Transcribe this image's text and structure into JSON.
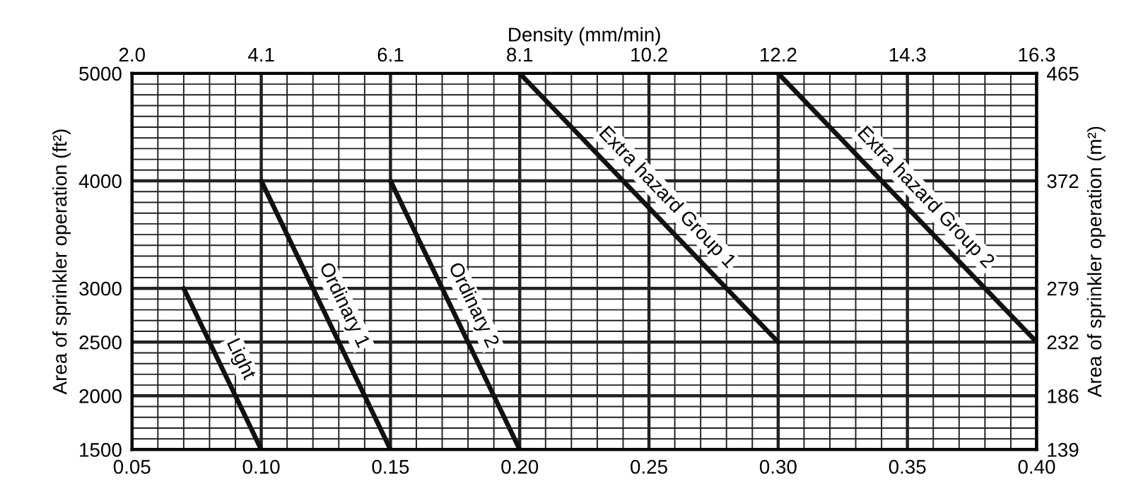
{
  "chart_data": {
    "type": "line",
    "x2label": "Density (mm/min)",
    "ylabel": "Area of sprinkler operation (ft²)",
    "y2label": "Area of sprinkler operation (m²)",
    "xlim": [
      0.05,
      0.4
    ],
    "xticks": [
      0.05,
      {
        "value": 0.06,
        "label": null
      },
      {
        "value": 0.07,
        "label": null
      },
      {
        "value": 0.08,
        "label": null
      },
      {
        "value": 0.09,
        "label": null
      },
      {
        "value": 0.1,
        "label": "0.10"
      },
      {
        "value": 0.11,
        "label": null
      },
      {
        "value": 0.12,
        "label": null
      },
      {
        "value": 0.13,
        "label": null
      },
      {
        "value": 0.14,
        "label": null
      },
      0.15,
      {
        "value": 0.16,
        "label": null
      },
      {
        "value": 0.17,
        "label": null
      },
      {
        "value": 0.18,
        "label": null
      },
      {
        "value": 0.19,
        "label": null
      },
      {
        "value": 0.2,
        "label": "0.20"
      },
      {
        "value": 0.21,
        "label": null
      },
      {
        "value": 0.22,
        "label": null
      },
      {
        "value": 0.23,
        "label": null
      },
      {
        "value": 0.24,
        "label": null
      },
      0.25,
      {
        "value": 0.26,
        "label": null
      },
      {
        "value": 0.27,
        "label": null
      },
      {
        "value": 0.28,
        "label": null
      },
      {
        "value": 0.29,
        "label": null
      },
      {
        "value": 0.3,
        "label": "0.30"
      },
      {
        "value": 0.31,
        "label": null
      },
      {
        "value": 0.32,
        "label": null
      },
      {
        "value": 0.33,
        "label": null
      },
      {
        "value": 0.34,
        "label": null
      },
      0.35,
      {
        "value": 0.36,
        "label": null
      },
      {
        "value": 0.37,
        "label": null
      },
      {
        "value": 0.38,
        "label": null
      },
      {
        "value": 0.39,
        "label": null
      },
      {
        "value": 0.4,
        "label": "0.40"
      }
    ],
    "x2lim": [
      2.037,
      16.298
    ],
    "x2ticks": [
      {
        "value": 2.037,
        "label": "2.0"
      },
      {
        "value": 4.075,
        "label": "4.1"
      },
      {
        "value": 6.112,
        "label": "6.1"
      },
      {
        "value": 8.149,
        "label": "8.1"
      },
      {
        "value": 10.187,
        "label": "10.2"
      },
      {
        "value": 12.224,
        "label": "12.2"
      },
      {
        "value": 14.261,
        "label": "14.3"
      },
      {
        "value": 16.298,
        "label": "16.3"
      }
    ],
    "ylim": [
      1500,
      5000
    ],
    "yticks": [
      1500,
      {
        "value": 1600,
        "label": null
      },
      {
        "value": 1700,
        "label": null
      },
      {
        "value": 1800,
        "label": null
      },
      {
        "value": 1900,
        "label": null
      },
      2000,
      {
        "value": 2100,
        "label": null
      },
      {
        "value": 2200,
        "label": null
      },
      {
        "value": 2300,
        "label": null
      },
      {
        "value": 2400,
        "label": null
      },
      2500,
      {
        "value": 2600,
        "label": null
      },
      {
        "value": 2700,
        "label": null
      },
      {
        "value": 2800,
        "label": null
      },
      {
        "value": 2900,
        "label": null
      },
      3000,
      {
        "value": 3100,
        "label": null
      },
      {
        "value": 3200,
        "label": null
      },
      {
        "value": 3300,
        "label": null
      },
      {
        "value": 3400,
        "label": null
      },
      {
        "value": 3500,
        "label": null
      },
      {
        "value": 3600,
        "label": null
      },
      {
        "value": 3700,
        "label": null
      },
      {
        "value": 3800,
        "label": null
      },
      {
        "value": 3900,
        "label": null
      },
      4000,
      {
        "value": 4100,
        "label": null
      },
      {
        "value": 4200,
        "label": null
      },
      {
        "value": 4300,
        "label": null
      },
      {
        "value": 4400,
        "label": null
      },
      {
        "value": 4500,
        "label": null
      },
      {
        "value": 4600,
        "label": null
      },
      {
        "value": 4700,
        "label": null
      },
      {
        "value": 4800,
        "label": null
      },
      {
        "value": 4900,
        "label": null
      },
      5000
    ],
    "y2lim": [
      139.35,
      464.52
    ],
    "y2ticks": [
      {
        "value": 139.35,
        "label": "139"
      },
      {
        "value": 185.81,
        "label": "186"
      },
      {
        "value": 232.26,
        "label": "232"
      },
      {
        "value": 278.71,
        "label": "279"
      },
      {
        "value": 371.61,
        "label": "372"
      },
      {
        "value": 464.52,
        "label": "465"
      }
    ],
    "grid": true,
    "series": [
      {
        "name": "Light",
        "color": "#111111",
        "x": [
          0.07,
          0.1
        ],
        "values": [
          3000,
          1500
        ]
      },
      {
        "name": "Ordinary 1",
        "color": "#111111",
        "x": [
          0.1,
          0.15
        ],
        "values": [
          4000,
          1500
        ]
      },
      {
        "name": "Ordinary 2",
        "color": "#111111",
        "x": [
          0.15,
          0.2
        ],
        "values": [
          4000,
          1500
        ]
      },
      {
        "name": "Extra hazard Group 1",
        "color": "#111111",
        "x": [
          0.2,
          0.3
        ],
        "values": [
          5000,
          2500
        ]
      },
      {
        "name": "Extra hazard Group 2",
        "color": "#111111",
        "x": [
          0.3,
          0.4
        ],
        "values": [
          5000,
          2500
        ]
      }
    ]
  }
}
